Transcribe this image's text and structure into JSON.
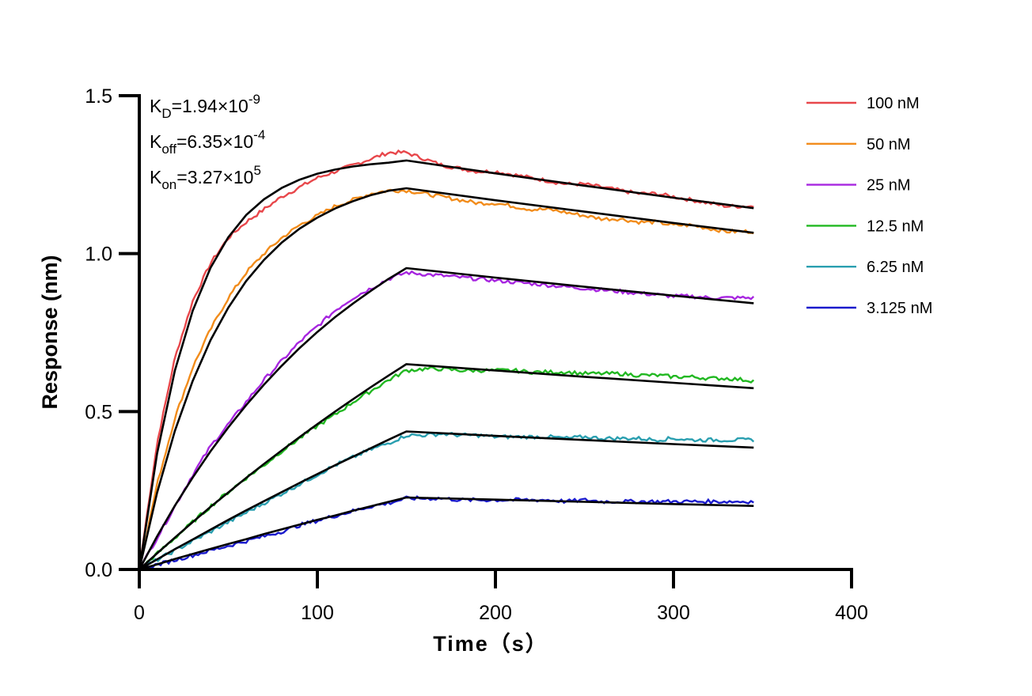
{
  "chart_data": {
    "type": "line",
    "xlabel": "Time（s）",
    "ylabel": "Response (nm)",
    "xlim": [
      0,
      400
    ],
    "ylim": [
      0,
      1.5
    ],
    "xticks": [
      "0",
      "100",
      "200",
      "300",
      "400"
    ],
    "yticks": [
      "0.0",
      "0.5",
      "1.0",
      "1.5"
    ],
    "grid": false,
    "legend_position": "right",
    "annotations": [
      {
        "main": "K",
        "sub": "D",
        "text": "=1.94×10",
        "sup": "-9"
      },
      {
        "main": "K",
        "sub": "off",
        "text": "=6.35×10",
        "sup": "-4"
      },
      {
        "main": "K",
        "sub": "on",
        "text": "=3.27×10",
        "sup": "5"
      }
    ],
    "fit_color": "#000000",
    "x": [
      0,
      10,
      20,
      30,
      40,
      50,
      60,
      70,
      80,
      90,
      100,
      110,
      120,
      130,
      140,
      150,
      160,
      170,
      180,
      190,
      200,
      210,
      220,
      230,
      240,
      250,
      260,
      270,
      280,
      290,
      300,
      310,
      320,
      330,
      340
    ],
    "fit_x": [
      0,
      10,
      20,
      30,
      40,
      50,
      60,
      70,
      80,
      90,
      100,
      110,
      120,
      130,
      140,
      150,
      200,
      250,
      300,
      345
    ],
    "series": [
      {
        "name": "100 nM",
        "color": "#e8474b",
        "values": [
          0,
          0.4,
          0.67,
          0.85,
          0.97,
          1.05,
          1.1,
          1.14,
          1.18,
          1.21,
          1.24,
          1.26,
          1.28,
          1.3,
          1.32,
          1.32,
          1.3,
          1.28,
          1.27,
          1.26,
          1.26,
          1.25,
          1.24,
          1.23,
          1.22,
          1.22,
          1.21,
          1.2,
          1.19,
          1.19,
          1.18,
          1.17,
          1.16,
          1.15,
          1.15
        ],
        "fit": [
          0,
          0.367,
          0.63,
          0.819,
          0.955,
          1.052,
          1.122,
          1.172,
          1.208,
          1.234,
          1.253,
          1.266,
          1.276,
          1.283,
          1.288,
          1.295,
          1.254,
          1.215,
          1.177,
          1.144
        ]
      },
      {
        "name": "50 nM",
        "color": "#f28c1b",
        "values": [
          0,
          0.27,
          0.48,
          0.64,
          0.76,
          0.86,
          0.94,
          1.0,
          1.05,
          1.09,
          1.12,
          1.15,
          1.17,
          1.19,
          1.2,
          1.2,
          1.19,
          1.18,
          1.17,
          1.16,
          1.16,
          1.15,
          1.14,
          1.14,
          1.13,
          1.12,
          1.11,
          1.11,
          1.1,
          1.1,
          1.09,
          1.09,
          1.08,
          1.07,
          1.07
        ],
        "fit": [
          0,
          0.243,
          0.439,
          0.597,
          0.726,
          0.829,
          0.913,
          0.98,
          1.035,
          1.079,
          1.114,
          1.143,
          1.166,
          1.185,
          1.199,
          1.207,
          1.169,
          1.133,
          1.097,
          1.066
        ]
      },
      {
        "name": "25 nM",
        "color": "#a726e0",
        "values": [
          0,
          0.1,
          0.2,
          0.3,
          0.39,
          0.46,
          0.53,
          0.6,
          0.66,
          0.72,
          0.77,
          0.82,
          0.86,
          0.89,
          0.92,
          0.94,
          0.935,
          0.93,
          0.925,
          0.92,
          0.915,
          0.91,
          0.905,
          0.9,
          0.895,
          0.89,
          0.885,
          0.88,
          0.875,
          0.87,
          0.865,
          0.865,
          0.86,
          0.86,
          0.86
        ],
        "fit": [
          0,
          0.105,
          0.202,
          0.291,
          0.374,
          0.45,
          0.52,
          0.585,
          0.645,
          0.701,
          0.752,
          0.799,
          0.842,
          0.882,
          0.92,
          0.954,
          0.924,
          0.895,
          0.867,
          0.843
        ]
      },
      {
        "name": "12.5 nM",
        "color": "#22b822",
        "values": [
          0,
          0.05,
          0.1,
          0.15,
          0.2,
          0.245,
          0.29,
          0.33,
          0.375,
          0.415,
          0.455,
          0.49,
          0.53,
          0.565,
          0.6,
          0.63,
          0.635,
          0.635,
          0.63,
          0.63,
          0.63,
          0.63,
          0.625,
          0.625,
          0.625,
          0.62,
          0.62,
          0.62,
          0.615,
          0.615,
          0.61,
          0.61,
          0.605,
          0.605,
          0.6
        ],
        "fit": [
          0,
          0.051,
          0.101,
          0.15,
          0.198,
          0.244,
          0.29,
          0.334,
          0.377,
          0.419,
          0.46,
          0.5,
          0.539,
          0.577,
          0.614,
          0.65,
          0.63,
          0.61,
          0.591,
          0.574
        ]
      },
      {
        "name": "6.25 nM",
        "color": "#2a9fb0",
        "values": [
          0,
          0.03,
          0.06,
          0.09,
          0.12,
          0.15,
          0.18,
          0.21,
          0.24,
          0.27,
          0.3,
          0.33,
          0.355,
          0.38,
          0.4,
          0.425,
          0.425,
          0.43,
          0.425,
          0.425,
          0.42,
          0.42,
          0.42,
          0.42,
          0.415,
          0.42,
          0.415,
          0.415,
          0.415,
          0.41,
          0.415,
          0.41,
          0.41,
          0.41,
          0.41
        ],
        "fit": [
          0,
          0.032,
          0.064,
          0.095,
          0.126,
          0.157,
          0.187,
          0.216,
          0.245,
          0.274,
          0.302,
          0.33,
          0.357,
          0.384,
          0.411,
          0.437,
          0.423,
          0.41,
          0.397,
          0.386
        ]
      },
      {
        "name": "3.125 nM",
        "color": "#1a1acc",
        "values": [
          0,
          0.015,
          0.03,
          0.045,
          0.06,
          0.075,
          0.09,
          0.105,
          0.12,
          0.14,
          0.155,
          0.17,
          0.185,
          0.2,
          0.21,
          0.225,
          0.225,
          0.225,
          0.22,
          0.22,
          0.22,
          0.22,
          0.22,
          0.22,
          0.215,
          0.22,
          0.215,
          0.215,
          0.215,
          0.215,
          0.215,
          0.215,
          0.215,
          0.215,
          0.215
        ],
        "fit": [
          0,
          0.016,
          0.033,
          0.049,
          0.065,
          0.081,
          0.096,
          0.112,
          0.127,
          0.142,
          0.157,
          0.171,
          0.186,
          0.2,
          0.214,
          0.228,
          0.221,
          0.214,
          0.207,
          0.201
        ]
      }
    ]
  }
}
